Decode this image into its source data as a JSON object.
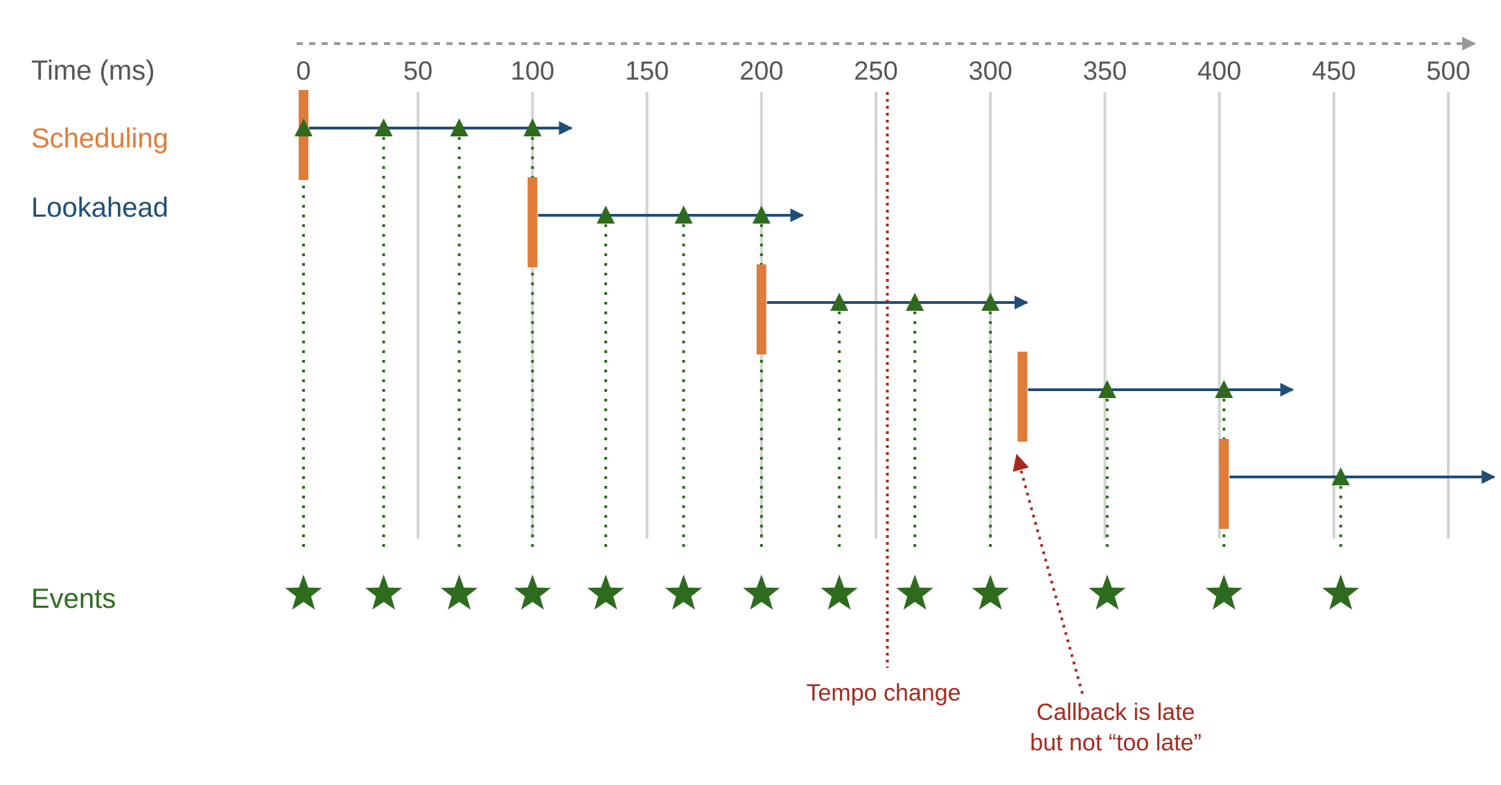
{
  "row_labels": {
    "time": "Time (ms)",
    "scheduling": "Scheduling",
    "lookahead": "Lookahead",
    "events": "Events"
  },
  "tick_labels": [
    "0",
    "50",
    "100",
    "150",
    "200",
    "250",
    "300",
    "350",
    "400",
    "450",
    "500"
  ],
  "time_axis": {
    "min": 0,
    "max": 500,
    "step": 50
  },
  "callbacks": [
    {
      "time": 0,
      "window_end": 117,
      "events": [
        0,
        35,
        68,
        100
      ]
    },
    {
      "time": 100,
      "window_end": 218,
      "events": [
        132,
        166,
        200
      ]
    },
    {
      "time": 200,
      "window_end": 316,
      "events": [
        234,
        267,
        300
      ]
    },
    {
      "time": 314,
      "window_end": 432,
      "events": [
        351,
        402
      ]
    },
    {
      "time": 402,
      "window_end": 520,
      "events": [
        453
      ]
    }
  ],
  "events": [
    0,
    35,
    68,
    100,
    132,
    166,
    200,
    234,
    267,
    300,
    351,
    402,
    453
  ],
  "tempo_change": {
    "time": 255,
    "label": "Tempo change"
  },
  "late_note": {
    "line1": "Callback is late",
    "line2": "but not “too late”"
  },
  "colors": {
    "scheduling": "#e07b39",
    "lookahead": "#1f4e79",
    "events": "#2e6b1e",
    "annotation": "#a52a1f",
    "grid": "#d3d3d3",
    "axis_arrow": "#999999",
    "axis_text": "#555555"
  },
  "icons": {
    "event": "star-icon",
    "event_marker": "triangle-up-icon"
  }
}
